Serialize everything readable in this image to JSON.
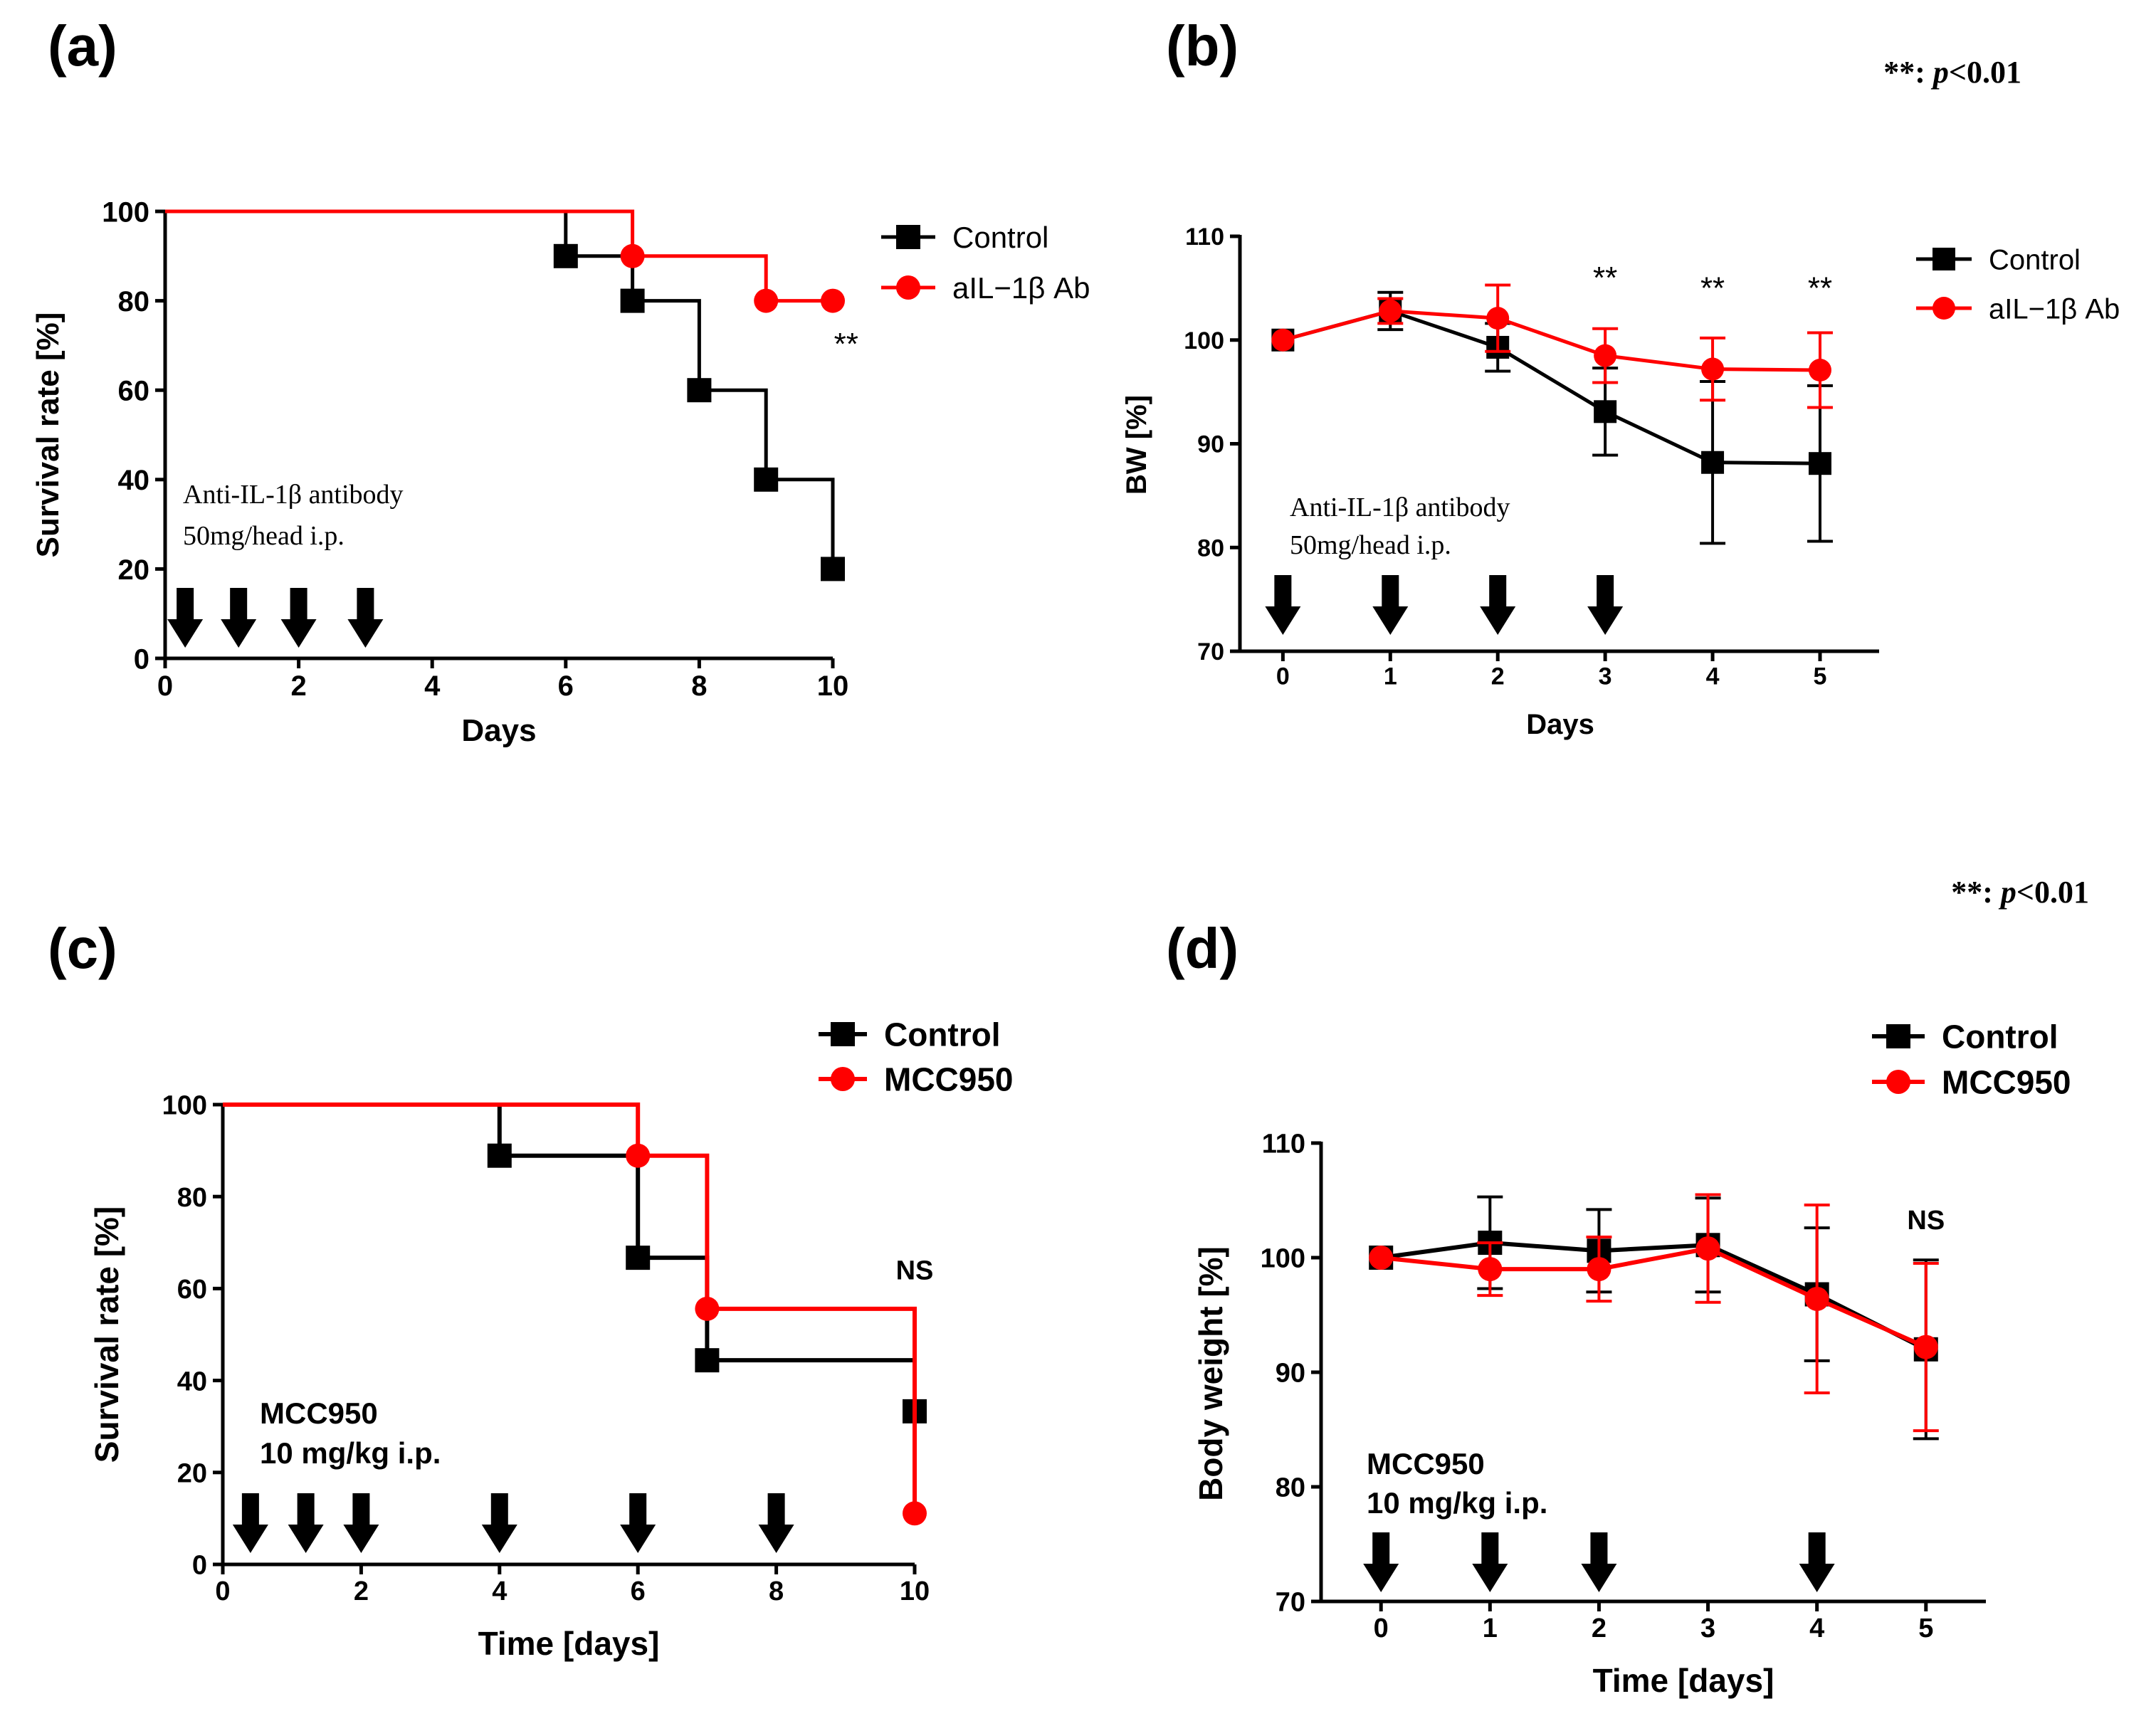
{
  "colors": {
    "control": "#000000",
    "treatment": "#ff0000",
    "axis": "#000000"
  },
  "chart_data": [
    {
      "panel": "(a)",
      "type": "line",
      "step": true,
      "xlabel": "Days",
      "ylabel": "Survival rate [%]",
      "xlim": [
        0,
        10
      ],
      "ylim": [
        0,
        100
      ],
      "xticks": [
        0,
        2,
        4,
        6,
        8,
        10
      ],
      "yticks": [
        0,
        20,
        40,
        60,
        80,
        100
      ],
      "legend": {
        "position": "top-right"
      },
      "series": [
        {
          "name": "Control",
          "color": "#000000",
          "marker": "square",
          "steps": [
            [
              0,
              100
            ],
            [
              6,
              100
            ],
            [
              6,
              90
            ],
            [
              7,
              90
            ],
            [
              7,
              80
            ],
            [
              8,
              80
            ],
            [
              8,
              60
            ],
            [
              9,
              60
            ],
            [
              9,
              40
            ],
            [
              10,
              40
            ],
            [
              10,
              20
            ]
          ],
          "points": [
            [
              6,
              90
            ],
            [
              7,
              80
            ],
            [
              8,
              60
            ],
            [
              9,
              40
            ],
            [
              10,
              20
            ]
          ]
        },
        {
          "name": "aIL−1β Ab",
          "color": "#ff0000",
          "marker": "circle",
          "steps": [
            [
              0,
              100
            ],
            [
              7,
              100
            ],
            [
              7,
              90
            ],
            [
              9,
              90
            ],
            [
              9,
              80
            ],
            [
              10,
              80
            ]
          ],
          "points": [
            [
              7,
              90
            ],
            [
              9,
              80
            ],
            [
              10,
              80
            ]
          ]
        }
      ],
      "annotations": [
        {
          "text": "**",
          "x": 10.2,
          "y": 68
        }
      ],
      "dose_text": [
        "Anti-IL-1β antibody",
        "50mg/head i.p."
      ],
      "dose_days": [
        0.3,
        1.1,
        2,
        3
      ]
    },
    {
      "panel": "(b)",
      "type": "line",
      "step": false,
      "xlabel": "Days",
      "ylabel": "BW [%]",
      "xlim": [
        -0.4,
        5.55
      ],
      "ylim": [
        70,
        110
      ],
      "xticks": [
        0,
        1,
        2,
        3,
        4,
        5
      ],
      "yticks": [
        70,
        80,
        90,
        100,
        110
      ],
      "legend": {
        "position": "top-right"
      },
      "series": [
        {
          "name": "Control",
          "color": "#000000",
          "marker": "square",
          "x": [
            0,
            1,
            2,
            3,
            4,
            5
          ],
          "values": [
            100,
            102.8,
            99.3,
            93.1,
            88.2,
            88.1
          ],
          "errors": [
            0,
            1.8,
            2.3,
            4.2,
            7.8,
            7.5
          ]
        },
        {
          "name": "aIL−1β Ab",
          "color": "#ff0000",
          "marker": "circle",
          "x": [
            0,
            1,
            2,
            3,
            4,
            5
          ],
          "values": [
            100,
            102.8,
            102.1,
            98.5,
            97.2,
            97.1
          ],
          "errors": [
            0,
            1.2,
            3.2,
            2.6,
            3.0,
            3.6
          ]
        }
      ],
      "annotations": [
        {
          "text": "**",
          "x": 3,
          "y": 105
        },
        {
          "text": "**",
          "x": 4,
          "y": 104
        },
        {
          "text": "**",
          "x": 5,
          "y": 104
        }
      ],
      "significance": "**: p<0.01",
      "dose_text": [
        "Anti-IL-1β antibody",
        "50mg/head i.p."
      ],
      "dose_days": [
        0,
        1,
        2,
        3
      ]
    },
    {
      "panel": "(c)",
      "type": "line",
      "step": true,
      "xlabel": "Time [days]",
      "ylabel": "Survival rate [%]",
      "xlim": [
        0,
        10
      ],
      "ylim": [
        0,
        100
      ],
      "xticks": [
        0,
        2,
        4,
        6,
        8,
        10
      ],
      "yticks": [
        0,
        20,
        40,
        60,
        80,
        100
      ],
      "legend": {
        "position": "top-right"
      },
      "series": [
        {
          "name": "Control",
          "color": "#000000",
          "marker": "square",
          "steps": [
            [
              0,
              100
            ],
            [
              4,
              100
            ],
            [
              4,
              88.9
            ],
            [
              6,
              88.9
            ],
            [
              6,
              66.7
            ],
            [
              7,
              66.7
            ],
            [
              7,
              44.4
            ],
            [
              10,
              44.4
            ],
            [
              10,
              33.3
            ]
          ],
          "points": [
            [
              4,
              88.9
            ],
            [
              6,
              66.7
            ],
            [
              7,
              44.4
            ],
            [
              10,
              33.3
            ]
          ]
        },
        {
          "name": "MCC950",
          "color": "#ff0000",
          "marker": "circle",
          "steps": [
            [
              0,
              100
            ],
            [
              6,
              100
            ],
            [
              6,
              88.9
            ],
            [
              7,
              88.9
            ],
            [
              7,
              55.6
            ],
            [
              10,
              55.6
            ],
            [
              10,
              11.1
            ]
          ],
          "points": [
            [
              6,
              88.9
            ],
            [
              7,
              55.6
            ],
            [
              10,
              11.1
            ]
          ]
        }
      ],
      "annotations": [
        {
          "text": "NS",
          "x": 10,
          "y": 62
        }
      ],
      "dose_text": [
        "MCC950",
        "10 mg/kg i.p."
      ],
      "dose_days": [
        0.4,
        1.2,
        2,
        4,
        6,
        8
      ]
    },
    {
      "panel": "(d)",
      "type": "line",
      "step": false,
      "xlabel": "Time [days]",
      "ylabel": "Body weight [%]",
      "xlim": [
        -0.55,
        5.55
      ],
      "ylim": [
        70,
        110
      ],
      "xticks": [
        0,
        1,
        2,
        3,
        4,
        5
      ],
      "yticks": [
        70,
        80,
        90,
        100,
        110
      ],
      "legend": {
        "position": "top-right"
      },
      "series": [
        {
          "name": "Control",
          "color": "#000000",
          "marker": "square",
          "x": [
            0,
            1,
            2,
            3,
            4,
            5
          ],
          "values": [
            100,
            101.3,
            100.6,
            101.1,
            96.8,
            92.0
          ],
          "errors": [
            0,
            4.0,
            3.6,
            4.1,
            5.8,
            7.8
          ]
        },
        {
          "name": "MCC950",
          "color": "#ff0000",
          "marker": "circle",
          "x": [
            0,
            1,
            2,
            3,
            4,
            5
          ],
          "values": [
            100,
            99.0,
            99.0,
            100.8,
            96.4,
            92.2
          ],
          "errors": [
            0,
            2.3,
            2.8,
            4.7,
            8.2,
            7.3
          ]
        }
      ],
      "annotations": [
        {
          "text": "NS",
          "x": 5,
          "y": 102.5
        }
      ],
      "significance": "**: p<0.01",
      "dose_text": [
        "MCC950",
        "10 mg/kg i.p."
      ],
      "dose_days": [
        0,
        1,
        2,
        4
      ]
    }
  ]
}
